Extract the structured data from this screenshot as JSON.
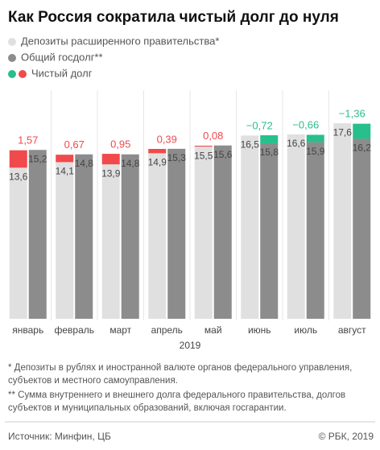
{
  "chart_data": {
    "type": "bar",
    "title": "Как Россия сократила чистый долг до нуля",
    "categories": [
      "январь",
      "февраль",
      "март",
      "апрель",
      "май",
      "июнь",
      "июль",
      "август"
    ],
    "x_label": "2019",
    "series": [
      {
        "name": "Депозиты расширенного правительства*",
        "color": "#e0e0e0",
        "values": [
          13.6,
          14.1,
          13.9,
          14.9,
          15.5,
          16.5,
          16.6,
          17.6
        ],
        "value_labels": [
          "13,6",
          "14,1",
          "13,9",
          "14,9",
          "15,5",
          "16,5",
          "16,6",
          "17,6"
        ]
      },
      {
        "name": "Общий госдолг**",
        "color": "#8c8c8c",
        "values": [
          15.2,
          14.8,
          14.8,
          15.3,
          15.6,
          15.8,
          15.9,
          16.2
        ],
        "value_labels": [
          "15,2",
          "14,8",
          "14,8",
          "15,3",
          "15,6",
          "15,8",
          "15,9",
          "16,2"
        ]
      },
      {
        "name": "Чистый долг",
        "color": "#f04a4c",
        "negative_color": "#27bf8b",
        "values": [
          1.57,
          0.67,
          0.95,
          0.39,
          0.08,
          -0.72,
          -0.66,
          -1.36
        ],
        "value_labels": [
          "1,57",
          "0,67",
          "0,95",
          "0,39",
          "0,08",
          "−0,72",
          "−0,66",
          "−1,36"
        ]
      }
    ],
    "notes": [
      "* Депозиты в рублях и иностранной валюте органов федерального управления,",
      "субъектов и местного самоуправления.",
      "** Сумма внутреннего и внешнего долга федерального правительства, долгов",
      "субъектов и муниципальных образований, включая госгарантии."
    ],
    "source": "Источник: Минфин, ЦБ",
    "copyright": "© РБК, 2019"
  }
}
